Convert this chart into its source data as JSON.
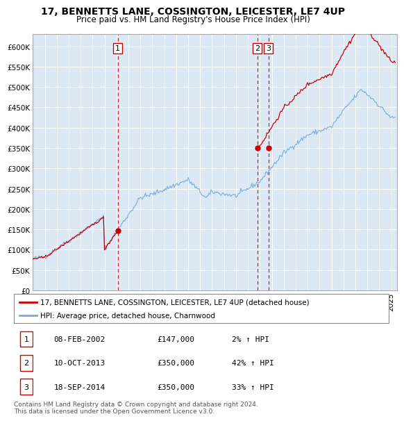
{
  "title": "17, BENNETTS LANE, COSSINGTON, LEICESTER, LE7 4UP",
  "subtitle": "Price paid vs. HM Land Registry's House Price Index (HPI)",
  "ylim": [
    0,
    630000
  ],
  "yticks": [
    0,
    50000,
    100000,
    150000,
    200000,
    250000,
    300000,
    350000,
    400000,
    450000,
    500000,
    550000,
    600000
  ],
  "xlim_start": 1995.0,
  "xlim_end": 2025.5,
  "plot_bg_color": "#dce9f5",
  "sale_color": "#cc0000",
  "hpi_color": "#7aaadd",
  "sale_label": "17, BENNETTS LANE, COSSINGTON, LEICESTER, LE7 4UP (detached house)",
  "hpi_label": "HPI: Average price, detached house, Charnwood",
  "sales": [
    {
      "num": 1,
      "year": 2002.1,
      "price": 147000,
      "date": "08-FEB-2002",
      "pct": "2%"
    },
    {
      "num": 2,
      "year": 2013.78,
      "price": 350000,
      "date": "10-OCT-2013",
      "pct": "42%"
    },
    {
      "num": 3,
      "year": 2014.72,
      "price": 350000,
      "date": "18-SEP-2014",
      "pct": "33%"
    }
  ],
  "table_rows": [
    [
      "1",
      "08-FEB-2002",
      "£147,000",
      "2% ↑ HPI"
    ],
    [
      "2",
      "10-OCT-2013",
      "£350,000",
      "42% ↑ HPI"
    ],
    [
      "3",
      "18-SEP-2014",
      "£350,000",
      "33% ↑ HPI"
    ]
  ],
  "footer": "Contains HM Land Registry data © Crown copyright and database right 2024.\nThis data is licensed under the Open Government Licence v3.0."
}
